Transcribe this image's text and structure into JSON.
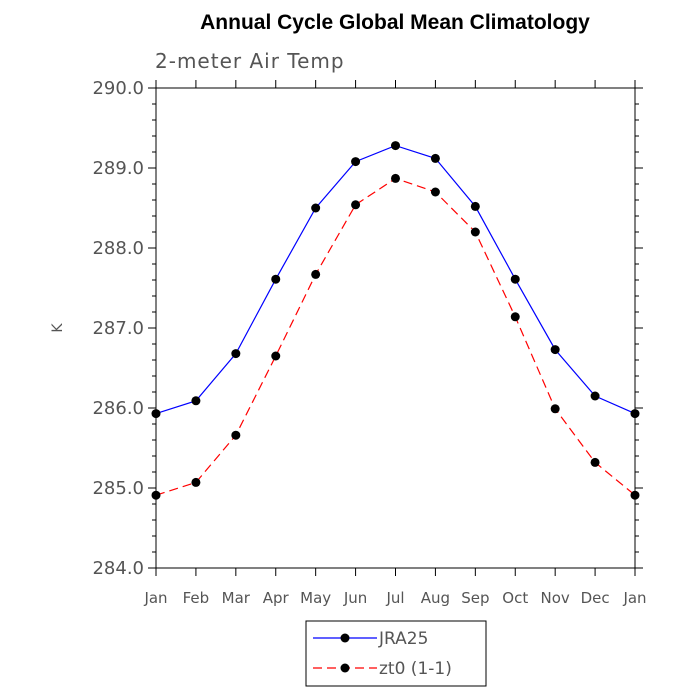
{
  "chart_data": {
    "type": "line",
    "title": "Annual Cycle Global Mean Climatology",
    "subtitle": "2-meter Air Temp",
    "xlabel": "",
    "ylabel": "K",
    "categories": [
      "Jan",
      "Feb",
      "Mar",
      "Apr",
      "May",
      "Jun",
      "Jul",
      "Aug",
      "Sep",
      "Oct",
      "Nov",
      "Dec",
      "Jan"
    ],
    "ylim": [
      284.0,
      290.0
    ],
    "yticks": [
      "284.0",
      "285.0",
      "286.0",
      "287.0",
      "288.0",
      "289.0",
      "290.0"
    ],
    "grid": false,
    "legend_position": "bottom",
    "series": [
      {
        "name": "JRA25",
        "color": "#0000ff",
        "dash": "solid",
        "marker": "filled-circle",
        "values": [
          285.93,
          286.09,
          286.68,
          287.61,
          288.5,
          289.08,
          289.28,
          289.12,
          288.52,
          287.61,
          286.73,
          286.15,
          285.93
        ]
      },
      {
        "name": "zt0 (1-1)",
        "color": "#ff0000",
        "dash": "dashed",
        "marker": "filled-circle",
        "values": [
          284.91,
          285.07,
          285.66,
          286.65,
          287.67,
          288.54,
          288.87,
          288.7,
          288.2,
          287.14,
          285.99,
          285.32,
          284.91
        ]
      }
    ]
  }
}
